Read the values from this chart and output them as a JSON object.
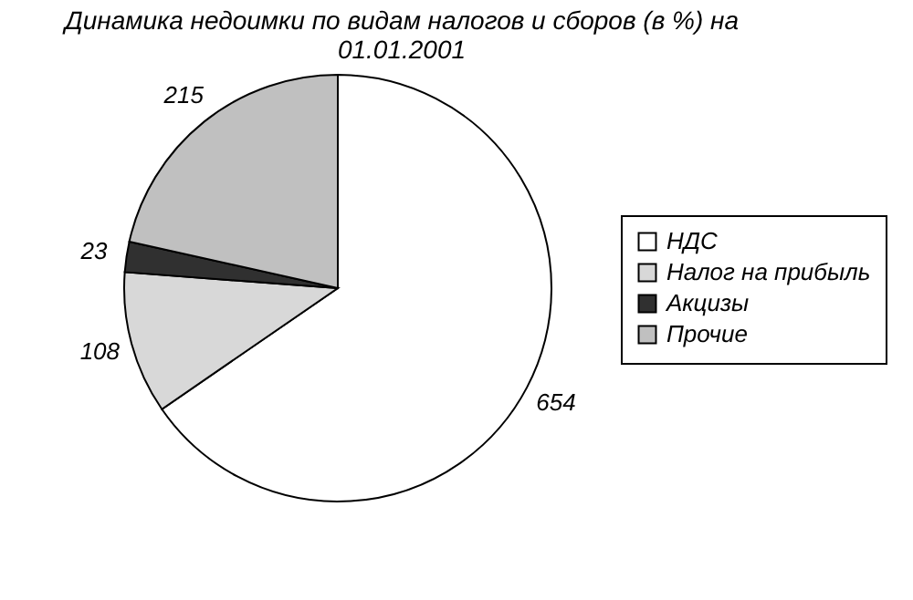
{
  "chart_data": {
    "type": "pie",
    "title": "Динамика недоимки по видам налогов и сборов (в %) на 01.01.2001",
    "categories": [
      "НДС",
      "Налог на прибыль",
      "Акцизы",
      "Прочие"
    ],
    "values": [
      654,
      108,
      23,
      215
    ],
    "colors": [
      "#ffffff",
      "#d8d8d8",
      "#303030",
      "#c0c0c0"
    ],
    "data_labels": true,
    "legend": "right"
  }
}
